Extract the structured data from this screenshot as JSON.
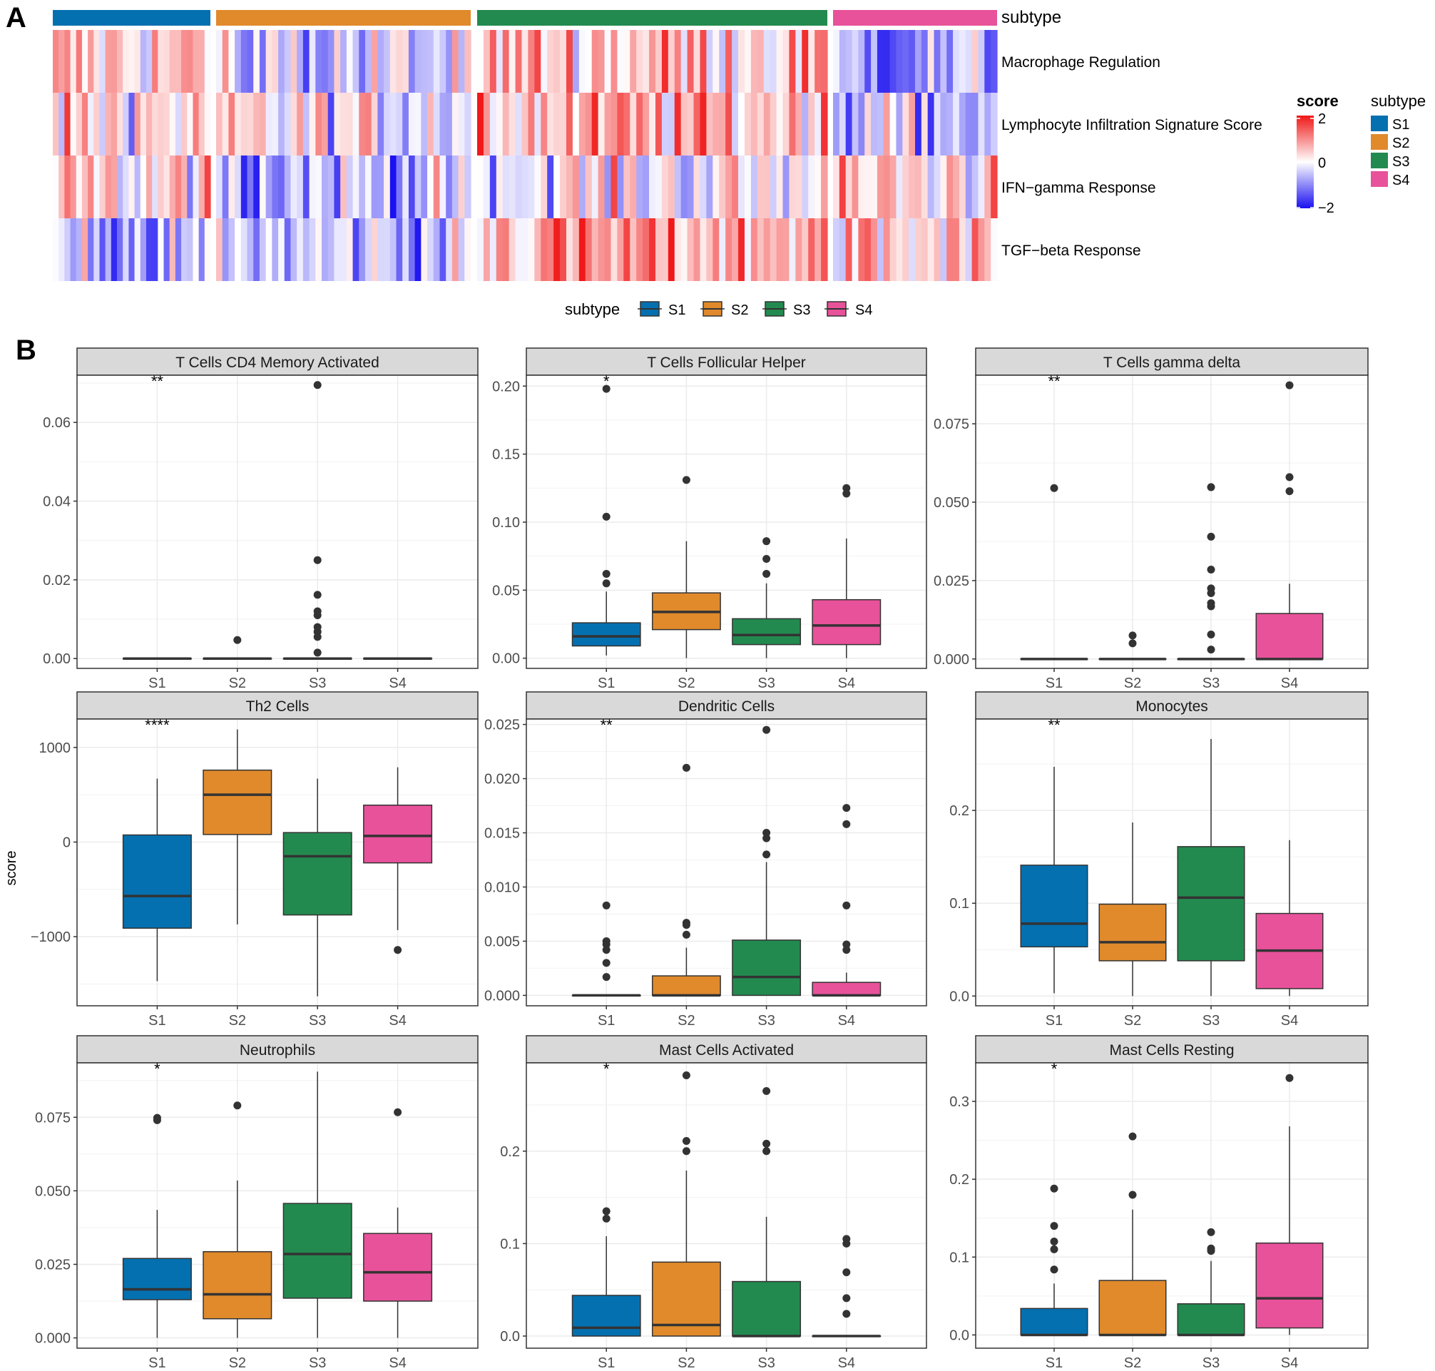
{
  "panel_labels": [
    "A",
    "B"
  ],
  "colors": {
    "S1": "#0570b0",
    "S2": "#e08a2c",
    "S3": "#238a4f",
    "S4": "#e8529a",
    "heat_low": "#1a10f0",
    "heat_mid": "#ffffff",
    "heat_high": "#f01818",
    "strip_bg": "#d9d9d9",
    "grid": "#ebebeb",
    "point": "#333333",
    "median": "#333333"
  },
  "chart_data": [
    {
      "type": "heatmap",
      "panel": "A",
      "annotation_track_label": "subtype",
      "rows": [
        "Macrophage Regulation",
        "Lymphocyte Infiltration Signature Score",
        "IFN−gamma Response",
        "TGF−beta Response"
      ],
      "groups": [
        {
          "name": "S1",
          "n": 27
        },
        {
          "name": "S2",
          "n": 41
        },
        {
          "name": "S3",
          "n": 55
        },
        {
          "name": "S4",
          "n": 26
        }
      ],
      "score_legend": {
        "title": "score",
        "ticks": [
          "2",
          "0",
          "−2"
        ],
        "range": [
          -2,
          2
        ]
      },
      "subtype_legend": {
        "title": "subtype",
        "items": [
          "S1",
          "S2",
          "S3",
          "S4"
        ]
      },
      "group_mean_scores": {
        "Macrophage Regulation": {
          "S1": 0.4,
          "S2": -0.4,
          "S3": 0.6,
          "S4": -0.8
        },
        "Lymphocyte Infiltration Signature Score": {
          "S1": 0.3,
          "S2": 0.0,
          "S3": 0.6,
          "S4": -0.5
        },
        "IFN−gamma Response": {
          "S1": 0.2,
          "S2": -0.5,
          "S3": 0.0,
          "S4": 0.3
        },
        "TGF−beta Response": {
          "S1": -0.5,
          "S2": -0.5,
          "S3": 0.8,
          "S4": 0.3
        }
      }
    },
    {
      "type": "boxplot",
      "panel": "B",
      "legend": {
        "title": "subtype",
        "items": [
          "S1",
          "S2",
          "S3",
          "S4"
        ]
      },
      "ylabel": "score",
      "categories": [
        "S1",
        "S2",
        "S3",
        "S4"
      ],
      "facets": [
        {
          "title": "T Cells CD4 Memory Activated",
          "signif": "**",
          "ylim": [
            -0.0025,
            0.072
          ],
          "ticks": [
            0,
            0.02,
            0.04,
            0.06
          ],
          "tick_labels": [
            "0.00",
            "0.02",
            "0.04",
            "0.06"
          ],
          "boxes": [
            {
              "q1": 0,
              "median": 0,
              "q3": 0,
              "lo": 0,
              "hi": 0,
              "outliers": []
            },
            {
              "q1": 0,
              "median": 0,
              "q3": 0,
              "lo": 0,
              "hi": 0,
              "outliers": [
                0.0047
              ]
            },
            {
              "q1": 0,
              "median": 0,
              "q3": 0,
              "lo": 0,
              "hi": 0,
              "outliers": [
                0.0695,
                0.025,
                0.0162,
                0.012,
                0.011,
                0.008,
                0.0068,
                0.0055,
                0.0015
              ]
            },
            {
              "q1": 0,
              "median": 0,
              "q3": 0,
              "lo": 0,
              "hi": 0,
              "outliers": []
            }
          ]
        },
        {
          "title": "T Cells Follicular Helper",
          "signif": "*",
          "ylim": [
            -0.0075,
            0.208
          ],
          "ticks": [
            0,
            0.05,
            0.1,
            0.15,
            0.2
          ],
          "tick_labels": [
            "0.00",
            "0.05",
            "0.10",
            "0.15",
            "0.20"
          ],
          "boxes": [
            {
              "q1": 0.009,
              "median": 0.016,
              "q3": 0.026,
              "lo": 0.002,
              "hi": 0.049,
              "outliers": [
                0.198,
                0.104,
                0.062,
                0.055
              ]
            },
            {
              "q1": 0.021,
              "median": 0.034,
              "q3": 0.048,
              "lo": 0,
              "hi": 0.086,
              "outliers": [
                0.131
              ]
            },
            {
              "q1": 0.01,
              "median": 0.017,
              "q3": 0.029,
              "lo": 0,
              "hi": 0.055,
              "outliers": [
                0.086,
                0.073,
                0.062
              ]
            },
            {
              "q1": 0.01,
              "median": 0.024,
              "q3": 0.043,
              "lo": 0,
              "hi": 0.088,
              "outliers": [
                0.125,
                0.121
              ]
            }
          ]
        },
        {
          "title": "T Cells gamma delta",
          "signif": "**",
          "ylim": [
            -0.003,
            0.0905
          ],
          "ticks": [
            0,
            0.025,
            0.05,
            0.075
          ],
          "tick_labels": [
            "0.000",
            "0.025",
            "0.050",
            "0.075"
          ],
          "boxes": [
            {
              "q1": 0,
              "median": 0,
              "q3": 0,
              "lo": 0,
              "hi": 0,
              "outliers": [
                0.0545
              ]
            },
            {
              "q1": 0,
              "median": 0,
              "q3": 0,
              "lo": 0,
              "hi": 0,
              "outliers": [
                0.0075,
                0.005
              ]
            },
            {
              "q1": 0,
              "median": 0,
              "q3": 0,
              "lo": 0,
              "hi": 0,
              "outliers": [
                0.0548,
                0.039,
                0.0285,
                0.0225,
                0.021,
                0.0178,
                0.0168,
                0.0078,
                0.003
              ]
            },
            {
              "q1": 0,
              "median": 0,
              "q3": 0.0145,
              "lo": 0,
              "hi": 0.024,
              "outliers": [
                0.0873,
                0.058,
                0.0535
              ]
            }
          ]
        },
        {
          "title": "Th2 Cells",
          "signif": "****",
          "ylim": [
            -1730,
            1300
          ],
          "ticks": [
            -1000,
            0,
            1000
          ],
          "tick_labels": [
            "−1000",
            "0",
            "1000"
          ],
          "boxes": [
            {
              "q1": -910,
              "median": -570,
              "q3": 75,
              "lo": -1470,
              "hi": 670,
              "outliers": []
            },
            {
              "q1": 80,
              "median": 500,
              "q3": 760,
              "lo": -870,
              "hi": 1190,
              "outliers": []
            },
            {
              "q1": -770,
              "median": -150,
              "q3": 100,
              "lo": -1630,
              "hi": 670,
              "outliers": []
            },
            {
              "q1": -220,
              "median": 65,
              "q3": 390,
              "lo": -930,
              "hi": 790,
              "outliers": [
                -1140
              ]
            }
          ]
        },
        {
          "title": "Dendritic Cells",
          "signif": "**",
          "ylim": [
            -0.00096,
            0.0255
          ],
          "ticks": [
            0,
            0.005,
            0.01,
            0.015,
            0.02,
            0.025
          ],
          "tick_labels": [
            "0.000",
            "0.005",
            "0.010",
            "0.015",
            "0.020",
            "0.025"
          ],
          "boxes": [
            {
              "q1": 0,
              "median": 0,
              "q3": 0,
              "lo": 0,
              "hi": 0,
              "outliers": [
                0.0083,
                0.005,
                0.0047,
                0.0042,
                0.003,
                0.0017
              ]
            },
            {
              "q1": 0,
              "median": 0,
              "q3": 0.0018,
              "lo": 0,
              "hi": 0.0044,
              "outliers": [
                0.021,
                0.0067,
                0.0065,
                0.0056
              ]
            },
            {
              "q1": 0,
              "median": 0.0017,
              "q3": 0.0051,
              "lo": 0,
              "hi": 0.0123,
              "outliers": [
                0.0245,
                0.015,
                0.0145,
                0.013
              ]
            },
            {
              "q1": 0,
              "median": 0,
              "q3": 0.0012,
              "lo": 0,
              "hi": 0.0021,
              "outliers": [
                0.0173,
                0.0158,
                0.0083,
                0.0047,
                0.0042
              ]
            }
          ]
        },
        {
          "title": "Monocytes",
          "signif": "**",
          "ylim": [
            -0.0105,
            0.2985
          ],
          "ticks": [
            0,
            0.1,
            0.2
          ],
          "tick_labels": [
            "0.0",
            "0.1",
            "0.2"
          ],
          "boxes": [
            {
              "q1": 0.053,
              "median": 0.078,
              "q3": 0.141,
              "lo": 0.003,
              "hi": 0.247,
              "outliers": []
            },
            {
              "q1": 0.038,
              "median": 0.058,
              "q3": 0.099,
              "lo": 0,
              "hi": 0.187,
              "outliers": []
            },
            {
              "q1": 0.038,
              "median": 0.106,
              "q3": 0.161,
              "lo": 0,
              "hi": 0.277,
              "outliers": []
            },
            {
              "q1": 0.008,
              "median": 0.049,
              "q3": 0.089,
              "lo": 0,
              "hi": 0.168,
              "outliers": []
            }
          ]
        },
        {
          "title": "Neutrophils",
          "signif": "*",
          "ylim": [
            -0.0035,
            0.0935
          ],
          "ticks": [
            0,
            0.025,
            0.05,
            0.075
          ],
          "tick_labels": [
            "0.000",
            "0.025",
            "0.050",
            "0.075"
          ],
          "boxes": [
            {
              "q1": 0.013,
              "median": 0.0165,
              "q3": 0.027,
              "lo": 0,
              "hi": 0.0435,
              "outliers": [
                0.0748,
                0.074
              ]
            },
            {
              "q1": 0.0065,
              "median": 0.0148,
              "q3": 0.0293,
              "lo": 0,
              "hi": 0.0535,
              "outliers": [
                0.079
              ]
            },
            {
              "q1": 0.0135,
              "median": 0.0285,
              "q3": 0.0457,
              "lo": 0,
              "hi": 0.0905,
              "outliers": []
            },
            {
              "q1": 0.0125,
              "median": 0.0223,
              "q3": 0.0355,
              "lo": 0,
              "hi": 0.0443,
              "outliers": [
                0.0767
              ]
            }
          ]
        },
        {
          "title": "Mast Cells Activated",
          "signif": "*",
          "ylim": [
            -0.0131,
            0.2955
          ],
          "ticks": [
            0,
            0.1,
            0.2
          ],
          "tick_labels": [
            "0.0",
            "0.1",
            "0.2"
          ],
          "boxes": [
            {
              "q1": 0,
              "median": 0.009,
              "q3": 0.044,
              "lo": 0,
              "hi": 0.108,
              "outliers": [
                0.135,
                0.127
              ]
            },
            {
              "q1": 0,
              "median": 0.012,
              "q3": 0.08,
              "lo": 0,
              "hi": 0.179,
              "outliers": [
                0.282,
                0.211,
                0.2
              ]
            },
            {
              "q1": 0,
              "median": 0,
              "q3": 0.059,
              "lo": 0,
              "hi": 0.129,
              "outliers": [
                0.265,
                0.208,
                0.2
              ]
            },
            {
              "q1": 0,
              "median": 0,
              "q3": 0,
              "lo": 0,
              "hi": 0,
              "outliers": [
                0.105,
                0.1,
                0.069,
                0.041,
                0.024
              ]
            }
          ]
        },
        {
          "title": "Mast Cells Resting",
          "signif": "*",
          "ylim": [
            -0.017,
            0.3495
          ],
          "ticks": [
            0,
            0.1,
            0.2,
            0.3
          ],
          "tick_labels": [
            "0.0",
            "0.1",
            "0.2",
            "0.3"
          ],
          "boxes": [
            {
              "q1": 0,
              "median": 0,
              "q3": 0.034,
              "lo": 0,
              "hi": 0.066,
              "outliers": [
                0.188,
                0.14,
                0.12,
                0.11,
                0.084
              ]
            },
            {
              "q1": 0,
              "median": 0,
              "q3": 0.07,
              "lo": 0,
              "hi": 0.161,
              "outliers": [
                0.255,
                0.18
              ]
            },
            {
              "q1": 0,
              "median": 0,
              "q3": 0.04,
              "lo": 0,
              "hi": 0.095,
              "outliers": [
                0.132,
                0.111,
                0.108
              ]
            },
            {
              "q1": 0.009,
              "median": 0.047,
              "q3": 0.118,
              "lo": 0,
              "hi": 0.268,
              "outliers": [
                0.33
              ]
            }
          ]
        }
      ]
    }
  ]
}
